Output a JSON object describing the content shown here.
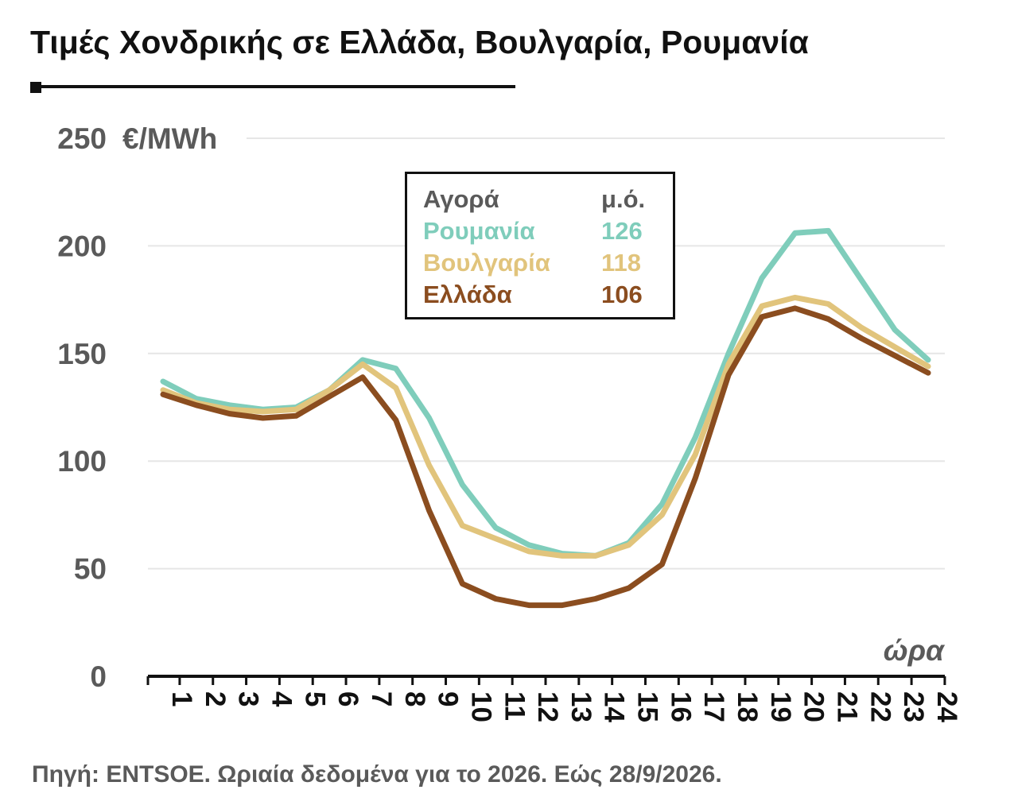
{
  "title": "Τιμές Χονδρικής σε Ελλάδα, Βουλγαρία, Ρουμανία",
  "source": "Πηγή: ENTSOE. Ωριαία δεδομένα για το 2026. Εώς 28/9/2026.",
  "legend": {
    "header_name": "Αγορά",
    "header_value": "μ.ό.",
    "items": [
      {
        "name": "Ρουμανία",
        "value": "126",
        "color": "#7fcdbb"
      },
      {
        "name": "Βουλγαρία",
        "value": "118",
        "color": "#e1c47c"
      },
      {
        "name": "Ελλάδα",
        "value": "106",
        "color": "#8b4d1f"
      }
    ]
  },
  "chart_data": {
    "type": "line",
    "ylabel": "€/MWh",
    "xlabel": "ώρα",
    "ylim": [
      0,
      250
    ],
    "yticks": [
      0,
      50,
      100,
      150,
      200,
      250
    ],
    "grid": true,
    "legend_position": "top-center",
    "x": [
      "1",
      "2",
      "3",
      "4",
      "5",
      "6",
      "7",
      "8",
      "9",
      "10",
      "11",
      "12",
      "13",
      "14",
      "15",
      "16",
      "17",
      "18",
      "19",
      "20",
      "21",
      "22",
      "23",
      "24"
    ],
    "series": [
      {
        "name": "Ρουμανία",
        "color": "#7fcdbb",
        "values": [
          137,
          129,
          126,
          124,
          125,
          133,
          147,
          143,
          120,
          89,
          69,
          61,
          57,
          56,
          62,
          80,
          111,
          150,
          185,
          206,
          207,
          184,
          161,
          147
        ]
      },
      {
        "name": "Βουλγαρία",
        "color": "#e1c47c",
        "values": [
          133,
          127,
          124,
          123,
          124,
          133,
          145,
          134,
          98,
          70,
          64,
          58,
          56,
          56,
          61,
          75,
          103,
          145,
          172,
          176,
          173,
          162,
          153,
          144
        ]
      },
      {
        "name": "Ελλάδα",
        "color": "#8b4d1f",
        "values": [
          131,
          126,
          122,
          120,
          121,
          130,
          139,
          119,
          77,
          43,
          36,
          33,
          33,
          36,
          41,
          52,
          92,
          140,
          167,
          171,
          166,
          157,
          149,
          141
        ]
      }
    ]
  }
}
